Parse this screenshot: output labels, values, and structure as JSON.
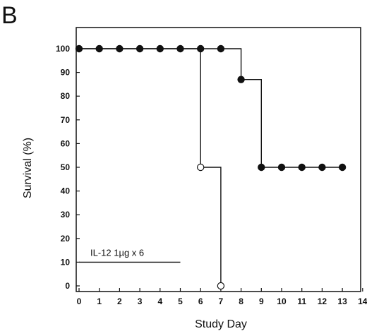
{
  "chart_data": {
    "type": "line",
    "panel_label": "B",
    "xlabel": "Study Day",
    "ylabel": "Survival (%)",
    "xlim": [
      0,
      14
    ],
    "ylim": [
      0,
      100
    ],
    "x_ticks": [
      0,
      1,
      2,
      3,
      4,
      5,
      6,
      7,
      8,
      9,
      10,
      11,
      12,
      13,
      14
    ],
    "y_ticks": [
      0,
      10,
      20,
      30,
      40,
      50,
      60,
      70,
      80,
      90,
      100
    ],
    "grid": false,
    "step": true,
    "series": [
      {
        "marker": "filled-circle",
        "color": "#111111",
        "x": [
          0,
          1,
          2,
          3,
          4,
          5,
          6,
          7,
          8,
          9,
          10,
          11,
          12,
          13
        ],
        "y": [
          100,
          100,
          100,
          100,
          100,
          100,
          100,
          100,
          87,
          50,
          50,
          50,
          50,
          50
        ]
      },
      {
        "marker": "open-circle",
        "color": "#111111",
        "x": [
          0,
          1,
          2,
          3,
          4,
          5,
          6,
          7
        ],
        "y": [
          100,
          100,
          100,
          100,
          100,
          100,
          50,
          0
        ]
      }
    ],
    "annotations": [
      {
        "text": "IL-12 1µg x 6",
        "x_start": 0,
        "x_end": 5,
        "y": 10
      }
    ]
  }
}
